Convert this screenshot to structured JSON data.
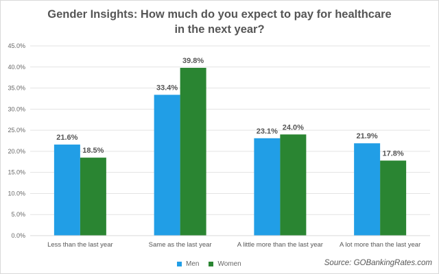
{
  "chart_data": {
    "type": "bar",
    "title": "Gender Insights: How much do you expect to pay for healthcare in the next year?",
    "xlabel": "",
    "ylabel": "",
    "ylim": [
      0,
      45
    ],
    "yticks": [
      "0.0%",
      "5.0%",
      "10.0%",
      "15.0%",
      "20.0%",
      "25.0%",
      "30.0%",
      "35.0%",
      "40.0%",
      "45.0%"
    ],
    "grid": true,
    "legend_position": "bottom",
    "categories": [
      "Less than the last year",
      "Same as the last year",
      "A little more than the last year",
      "A lot more than the last year"
    ],
    "series": [
      {
        "name": "Men",
        "color": "#219ee6",
        "values": [
          21.6,
          33.4,
          23.1,
          21.9
        ],
        "labels": [
          "21.6%",
          "33.4%",
          "23.1%",
          "21.9%"
        ]
      },
      {
        "name": "Women",
        "color": "#2a8532",
        "values": [
          18.5,
          39.8,
          24.0,
          17.8
        ],
        "labels": [
          "18.5%",
          "39.8%",
          "24.0%",
          "17.8%"
        ]
      }
    ],
    "source": "Source: GOBankingRates.com"
  }
}
